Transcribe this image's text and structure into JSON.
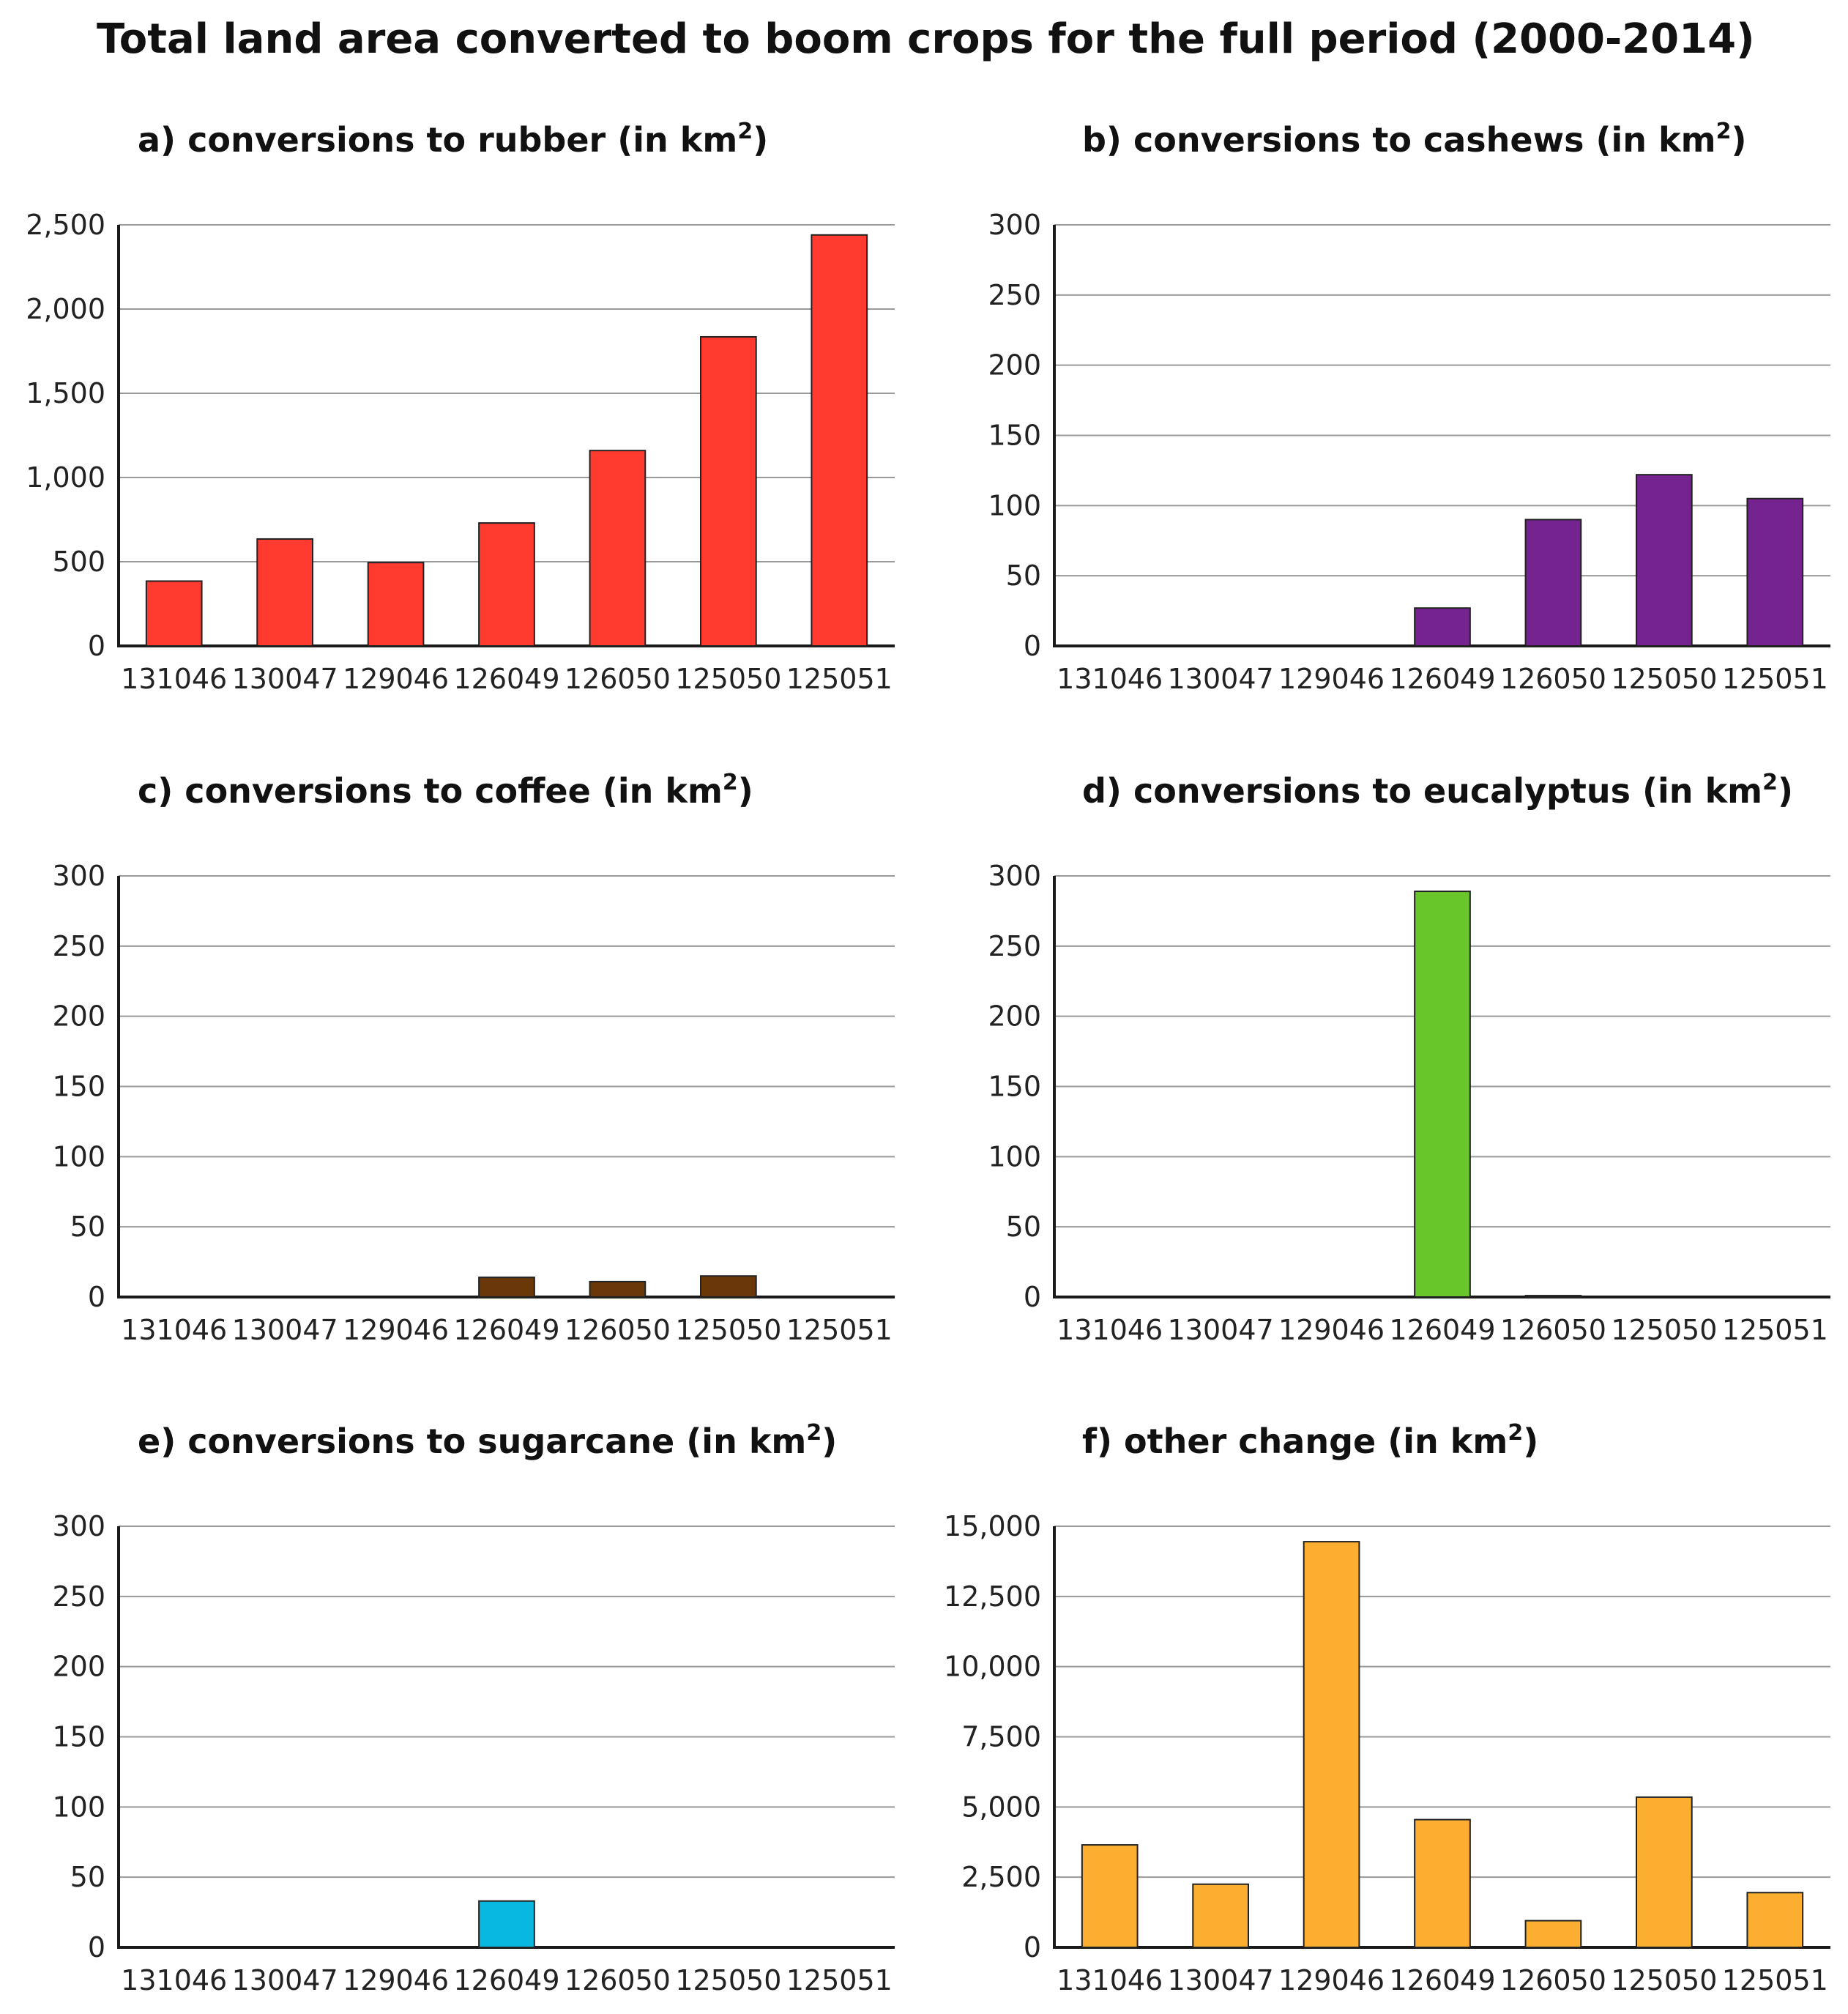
{
  "title": "Total land area converted to boom crops for the full period (2000-2014)",
  "chart_data": [
    {
      "id": "a",
      "type": "bar",
      "title": "a) conversions to rubber (in km",
      "title_sup": "2",
      "title_end": ")",
      "categories": [
        "131046",
        "130047",
        "129046",
        "126049",
        "126050",
        "125050",
        "125051"
      ],
      "values": [
        385,
        635,
        495,
        730,
        1160,
        1835,
        2440
      ],
      "ylim": [
        0,
        2500
      ],
      "yticks": [
        0,
        500,
        1000,
        1500,
        2000,
        2500
      ],
      "ytick_labels": [
        "0",
        "500",
        "1,000",
        "1,500",
        "2,000",
        "2,500"
      ],
      "color": "#ff3b30",
      "grid": true
    },
    {
      "id": "b",
      "type": "bar",
      "title": "b) conversions to cashews (in km",
      "title_sup": "2",
      "title_end": ")",
      "categories": [
        "131046",
        "130047",
        "129046",
        "126049",
        "126050",
        "125050",
        "125051"
      ],
      "values": [
        0,
        0,
        0,
        27,
        90,
        122,
        105
      ],
      "ylim": [
        0,
        300
      ],
      "yticks": [
        0,
        50,
        100,
        150,
        200,
        250,
        300
      ],
      "ytick_labels": [
        "0",
        "50",
        "100",
        "150",
        "200",
        "250",
        "300"
      ],
      "color": "#74238f",
      "grid": true
    },
    {
      "id": "c",
      "type": "bar",
      "title": "c) conversions to coffee (in km",
      "title_sup": "2",
      "title_end": ")",
      "categories": [
        "131046",
        "130047",
        "129046",
        "126049",
        "126050",
        "125050",
        "125051"
      ],
      "values": [
        0,
        0,
        0,
        14,
        11,
        15,
        0
      ],
      "ylim": [
        0,
        300
      ],
      "yticks": [
        0,
        50,
        100,
        150,
        200,
        250,
        300
      ],
      "ytick_labels": [
        "0",
        "50",
        "100",
        "150",
        "200",
        "250",
        "300"
      ],
      "color": "#6a3808",
      "grid": true
    },
    {
      "id": "d",
      "type": "bar",
      "title": "d) conversions to eucalyptus (in km",
      "title_sup": "2",
      "title_end": ")",
      "categories": [
        "131046",
        "130047",
        "129046",
        "126049",
        "126050",
        "125050",
        "125051"
      ],
      "values": [
        0,
        0,
        0,
        289,
        1,
        0,
        0
      ],
      "ylim": [
        0,
        300
      ],
      "yticks": [
        0,
        50,
        100,
        150,
        200,
        250,
        300
      ],
      "ytick_labels": [
        "0",
        "50",
        "100",
        "150",
        "200",
        "250",
        "300"
      ],
      "color": "#68c62a",
      "grid": true
    },
    {
      "id": "e",
      "type": "bar",
      "title": "e) conversions to sugarcane (in km",
      "title_sup": "2",
      "title_end": ")",
      "categories": [
        "131046",
        "130047",
        "129046",
        "126049",
        "126050",
        "125050",
        "125051"
      ],
      "values": [
        0,
        0,
        0,
        33,
        0,
        0,
        0
      ],
      "ylim": [
        0,
        300
      ],
      "yticks": [
        0,
        50,
        100,
        150,
        200,
        250,
        300
      ],
      "ytick_labels": [
        "0",
        "50",
        "100",
        "150",
        "200",
        "250",
        "300"
      ],
      "color": "#08b8e0",
      "grid": true
    },
    {
      "id": "f",
      "type": "bar",
      "title": "f) other change (in km",
      "title_sup": "2",
      "title_end": ")",
      "categories": [
        "131046",
        "130047",
        "129046",
        "126049",
        "126050",
        "125050",
        "125051"
      ],
      "values": [
        3650,
        2250,
        14450,
        4550,
        950,
        5350,
        1950
      ],
      "ylim": [
        0,
        15000
      ],
      "yticks": [
        0,
        2500,
        5000,
        7500,
        10000,
        12500,
        15000
      ],
      "ytick_labels": [
        "0",
        "2,500",
        "5,000",
        "7,500",
        "10,000",
        "12,500",
        "15,000"
      ],
      "color": "#fbae2f",
      "grid": true
    }
  ]
}
